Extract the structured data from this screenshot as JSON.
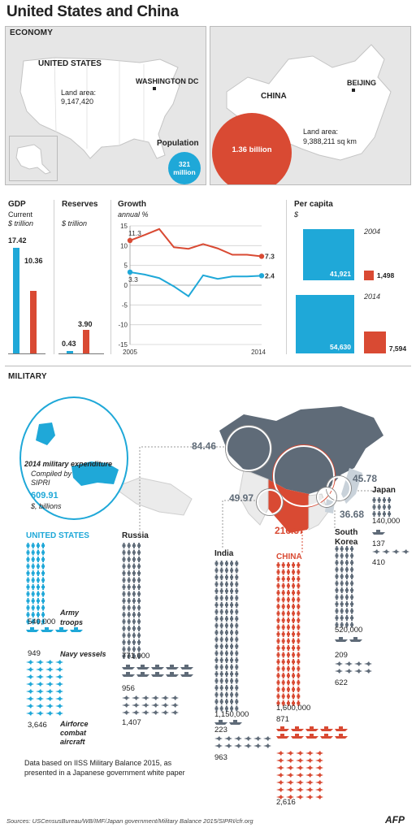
{
  "title": "United States and China",
  "economy": {
    "section_label": "ECONOMY",
    "us": {
      "name": "UNITED STATES",
      "capital": "WASHINGTON DC",
      "land_area_label": "Land area:",
      "land_area": "9,147,420"
    },
    "china": {
      "name": "CHINA",
      "capital": "BEIJING",
      "land_area_label": "Land area:",
      "land_area": "9,388,211 sq km"
    },
    "population": {
      "label": "Population",
      "us": "321 million",
      "china": "1.36 billion"
    }
  },
  "gdp": {
    "title": "GDP",
    "sub1": "Current",
    "sub2": "$ trillion",
    "us": "17.42",
    "china": "10.36",
    "us_value": 17.42,
    "china_value": 10.36
  },
  "reserves": {
    "title": "Reserves",
    "sub": "$ trillion",
    "us": "0.43",
    "china": "3.90",
    "us_value": 0.43,
    "china_value": 3.9
  },
  "chart_data": {
    "type": "line",
    "title": "Growth",
    "subtitle": "annual %",
    "x": [
      2005,
      2006,
      2007,
      2008,
      2009,
      2010,
      2011,
      2012,
      2013,
      2014
    ],
    "x_tick_labels": [
      "2005",
      "2014"
    ],
    "ylim": [
      -15,
      15
    ],
    "y_ticks": [
      15,
      10,
      5,
      0,
      -5,
      -10,
      -15
    ],
    "grid": true,
    "series": [
      {
        "name": "",
        "color": "#1fa8d8",
        "values": [
          3.3,
          2.7,
          1.8,
          -0.3,
          -2.8,
          2.5,
          1.6,
          2.2,
          2.2,
          2.4
        ],
        "start_label": "3.3",
        "end_label": "2.4"
      },
      {
        "name": "",
        "color": "#d94a33",
        "values": [
          11.3,
          12.7,
          14.2,
          9.6,
          9.2,
          10.4,
          9.3,
          7.7,
          7.7,
          7.3
        ],
        "start_label": "11.3",
        "end_label": "7.3"
      }
    ]
  },
  "per_capita": {
    "title": "Per capita",
    "sub": "$",
    "y2004": {
      "year": "2004",
      "us": "41,921",
      "china": "1,498",
      "us_value": 41921,
      "china_value": 1498
    },
    "y2014": {
      "year": "2014",
      "us": "54,630",
      "china": "7,594",
      "us_value": 54630,
      "china_value": 7594
    }
  },
  "military": {
    "section_label": "MILITARY",
    "note_title": "2014 military expenditure",
    "note_compiled": "Compiled by SIPRI",
    "us_expenditure": "609.91",
    "note_units": "$, billions",
    "expenditures": {
      "russia": "84.46",
      "india": "49.97",
      "china": "216.37",
      "japan": "45.78",
      "south_korea": "36.68"
    },
    "legend": {
      "army": "Army troops",
      "navy": "Navy vessels",
      "air": "Airforce combat aircraft"
    },
    "countries": {
      "us": {
        "name": "UNITED STATES",
        "army": "540,000",
        "navy": "949",
        "air": "3,646"
      },
      "russia": {
        "name": "Russia",
        "army": "771,000",
        "navy": "956",
        "air": "1,407"
      },
      "india": {
        "name": "India",
        "army": "1,150,000",
        "navy": "223",
        "air": "963"
      },
      "china": {
        "name": "CHINA",
        "army": "1,600,000",
        "navy": "871",
        "air": "2,616"
      },
      "korea": {
        "name": "South Korea",
        "army": "520,000",
        "navy": "209",
        "air": "622"
      },
      "japan": {
        "name": "Japan",
        "army": "140,000",
        "navy": "137",
        "air": "410"
      }
    },
    "footnote": "Data based on IISS Military Balance 2015, as presented in a Japanese government white paper"
  },
  "sources": "Sources: USCensusBureau/WB/IMF/Japan government/Military Balance 2015/SIPRI/cfr.org",
  "credit": "AFP",
  "colors": {
    "us": "#1fa8d8",
    "china": "#d94a33",
    "other": "#5f6b78",
    "map": "#e6e6e6"
  }
}
